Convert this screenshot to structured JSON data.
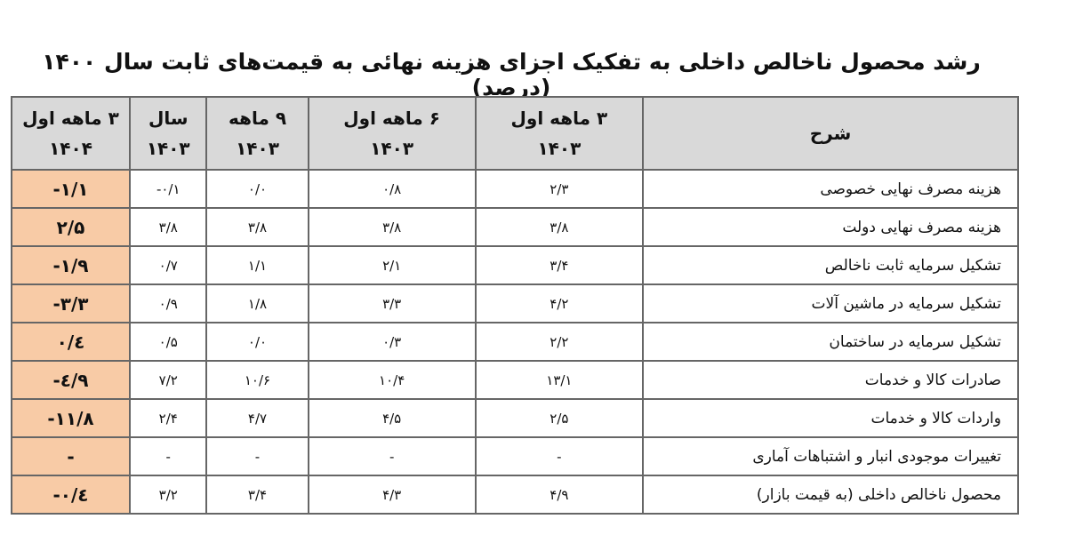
{
  "title": "رشد محصول ناخالص داخلی به تفکیک اجزای هزینه نهائی به قیمت‌های ثابت سال ۱۴۰۰ (درصد)",
  "headers": [
    {
      "line1": "شرح",
      "line2": ""
    },
    {
      "line1": "۳ ماهه اول",
      "line2": "۱۴۰۳"
    },
    {
      "line1": "۶ ماهه اول",
      "line2": "۱۴۰۳"
    },
    {
      "line1": "۹ ماهه",
      "line2": "۱۴۰۳"
    },
    {
      "line1": "سال",
      "line2": "۱۴۰۳"
    },
    {
      "line1": "۳ ماهه اول",
      "line2": "۱۴۰۴"
    }
  ],
  "highlight_color": "#f8cba6",
  "rows": [
    {
      "label": "هزینه مصرف نهایی خصوصی",
      "values": [
        "۲/۳",
        "۰/۸",
        "۰/۰",
        "-۰/۱",
        "-۱/۱"
      ]
    },
    {
      "label": "هزینه مصرف نهایی دولت",
      "values": [
        "۳/۸",
        "۳/۸",
        "۳/۸",
        "۳/۸",
        "۲/۵"
      ]
    },
    {
      "label": "تشکیل سرمایه ثابت ناخالص",
      "values": [
        "۳/۴",
        "۲/۱",
        "۱/۱",
        "۰/۷",
        "-۱/۹"
      ]
    },
    {
      "label": "تشکیل سرمایه در ماشین آلات",
      "values": [
        "۴/۲",
        "۳/۳",
        "۱/۸",
        "۰/۹",
        "-۳/۳"
      ]
    },
    {
      "label": "تشکیل سرمایه در ساختمان",
      "values": [
        "۲/۲",
        "۰/۳",
        "۰/۰",
        "۰/۵",
        "۰/٤"
      ]
    },
    {
      "label": "صادرات کالا و خدمات",
      "values": [
        "۱۳/۱",
        "۱۰/۴",
        "۱۰/۶",
        "۷/۲",
        "-٤/۹"
      ]
    },
    {
      "label": "واردات کالا و خدمات",
      "values": [
        "۲/۵",
        "۴/۵",
        "۴/۷",
        "۲/۴",
        "-۱۱/۸"
      ]
    },
    {
      "label": "تغییرات موجودی انبار و اشتباهات آماری",
      "values": [
        "-",
        "-",
        "-",
        "-",
        "-"
      ]
    },
    {
      "label": "محصول ناخالص داخلی (به قیمت بازار)",
      "values": [
        "۴/۹",
        "۴/۳",
        "۳/۴",
        "۳/۲",
        "-۰/٤"
      ]
    }
  ]
}
